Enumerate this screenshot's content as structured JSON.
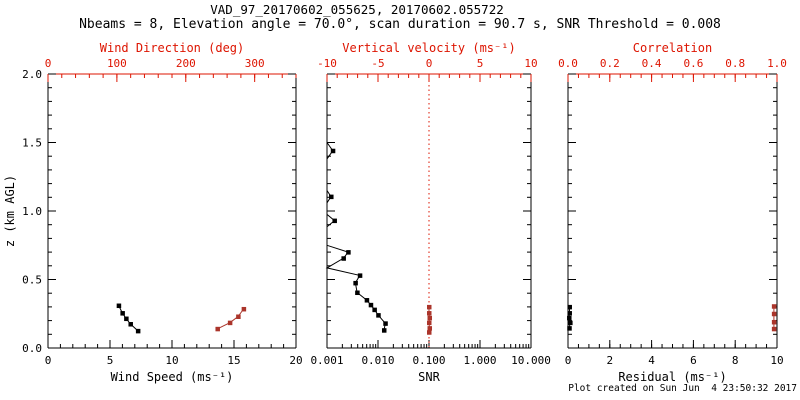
{
  "header": {
    "title": "VAD_97_20170602_055625, 20170602.055722",
    "subtitle": "Nbeams = 8, Elevation angle = 70.0°, scan duration = 90.7 s, SNR Threshold = 0.008"
  },
  "footer": {
    "created": "Plot created on Sun Jun  4 23:50:32 2017"
  },
  "colors": {
    "axis_red": "#dd1400",
    "series_red": "#ab352b",
    "black": "#000000",
    "background": "#ffffff"
  },
  "y_axis_shared": {
    "label": "z (km AGL)",
    "min": 0.0,
    "max": 2.0,
    "ticks": [
      0.0,
      0.5,
      1.0,
      1.5,
      2.0
    ],
    "tick_labels": [
      "0.0",
      "0.5",
      "1.0",
      "1.5",
      "2.0"
    ],
    "minor_step": 0.1
  },
  "chart_data": [
    {
      "type": "line",
      "name": "wind",
      "top_axis": {
        "label": "Wind Direction (deg)",
        "color": "red",
        "min": 0,
        "max": 360,
        "ticks": [
          0,
          100,
          200,
          300
        ],
        "tick_labels": [
          "0",
          "100",
          "200",
          "300"
        ],
        "minor_step": 20
      },
      "bottom_axis": {
        "label": "Wind Speed (ms⁻¹)",
        "color": "black",
        "min": 0,
        "max": 20,
        "ticks": [
          0,
          5,
          10,
          15,
          20
        ],
        "tick_labels": [
          "0",
          "5",
          "10",
          "15",
          "20"
        ],
        "minor_step": 1
      },
      "show_y_labels": true,
      "series": [
        {
          "name": "wind-speed",
          "axis": "bottom",
          "color": "black",
          "marker": "square",
          "points": [
            [
              5.7,
              0.31
            ],
            [
              6.0,
              0.255
            ],
            [
              6.3,
              0.215
            ],
            [
              6.65,
              0.175
            ],
            [
              7.25,
              0.125
            ]
          ]
        },
        {
          "name": "wind-direction",
          "axis": "top",
          "color": "red",
          "marker": "square",
          "points": [
            [
              246,
              0.14
            ],
            [
              264,
              0.185
            ],
            [
              276,
              0.23
            ],
            [
              284,
              0.285
            ]
          ]
        }
      ]
    },
    {
      "type": "line",
      "name": "snr",
      "top_axis": {
        "label": "Vertical velocity (ms⁻¹)",
        "color": "red",
        "min": -10,
        "max": 10,
        "ticks": [
          -10,
          -5,
          0,
          5,
          10
        ],
        "tick_labels": [
          "-10",
          "-5",
          "0",
          "5",
          "10"
        ],
        "minor_step": 1
      },
      "bottom_axis": {
        "label": "SNR",
        "color": "black",
        "scale": "log",
        "min": 0.001,
        "max": 10,
        "ticks": [
          0.001,
          0.01,
          0.1,
          1,
          10
        ],
        "tick_labels": [
          "0.001",
          "0.010",
          "0.100",
          "1.000",
          "10.000"
        ]
      },
      "show_y_labels": false,
      "ref_line": {
        "axis": "top",
        "value": 0,
        "style": "dotted",
        "color": "red"
      },
      "series": [
        {
          "name": "snr-profile",
          "axis": "bottom",
          "color": "black",
          "marker": "square",
          "points": [
            [
              0.001,
              1.5
            ],
            [
              0.0013,
              1.44
            ],
            [
              0.001,
              1.38
            ],
            [
              0.001,
              1.15
            ],
            [
              0.0012,
              1.105
            ],
            [
              0.001,
              1.06
            ],
            [
              0.001,
              0.975
            ],
            [
              0.0014,
              0.93
            ],
            [
              0.001,
              0.885
            ],
            [
              0.001,
              0.75
            ],
            [
              0.0026,
              0.7
            ],
            [
              0.0021,
              0.655
            ],
            [
              0.001,
              0.585
            ],
            [
              0.0044,
              0.53
            ],
            [
              0.0036,
              0.475
            ],
            [
              0.0039,
              0.405
            ],
            [
              0.006,
              0.35
            ],
            [
              0.0072,
              0.315
            ],
            [
              0.0085,
              0.28
            ],
            [
              0.0101,
              0.24
            ],
            [
              0.0139,
              0.18
            ],
            [
              0.0131,
              0.13
            ]
          ]
        },
        {
          "name": "vertical-velocity",
          "axis": "top",
          "color": "red",
          "marker": "square",
          "points": [
            [
              0.0,
              0.3
            ],
            [
              0.0,
              0.255
            ],
            [
              0.05,
              0.22
            ],
            [
              0.0,
              0.185
            ],
            [
              0.05,
              0.145
            ],
            [
              0.0,
              0.115
            ]
          ]
        }
      ]
    },
    {
      "type": "line",
      "name": "residual",
      "top_axis": {
        "label": "Correlation",
        "color": "red",
        "min": 0,
        "max": 1,
        "ticks": [
          0,
          0.2,
          0.4,
          0.6,
          0.8,
          1.0
        ],
        "tick_labels": [
          "0.0",
          "0.2",
          "0.4",
          "0.6",
          "0.8",
          "1.0"
        ],
        "minor_step": 0.05
      },
      "bottom_axis": {
        "label": "Residual (ms⁻¹)",
        "color": "black",
        "min": 0,
        "max": 10,
        "ticks": [
          0,
          2,
          4,
          6,
          8,
          10
        ],
        "tick_labels": [
          "0",
          "2",
          "4",
          "6",
          "8",
          "10"
        ],
        "minor_step": 0.5
      },
      "show_y_labels": false,
      "series": [
        {
          "name": "residual",
          "axis": "bottom",
          "color": "black",
          "marker": "square",
          "points": [
            [
              0.07,
              0.3
            ],
            [
              0.07,
              0.255
            ],
            [
              0.05,
              0.22
            ],
            [
              0.1,
              0.185
            ],
            [
              0.06,
              0.145
            ]
          ]
        },
        {
          "name": "correlation",
          "axis": "top",
          "color": "red",
          "marker": "square",
          "points": [
            [
              0.985,
              0.305
            ],
            [
              0.985,
              0.25
            ],
            [
              0.985,
              0.19
            ],
            [
              0.985,
              0.14
            ]
          ]
        }
      ]
    }
  ]
}
